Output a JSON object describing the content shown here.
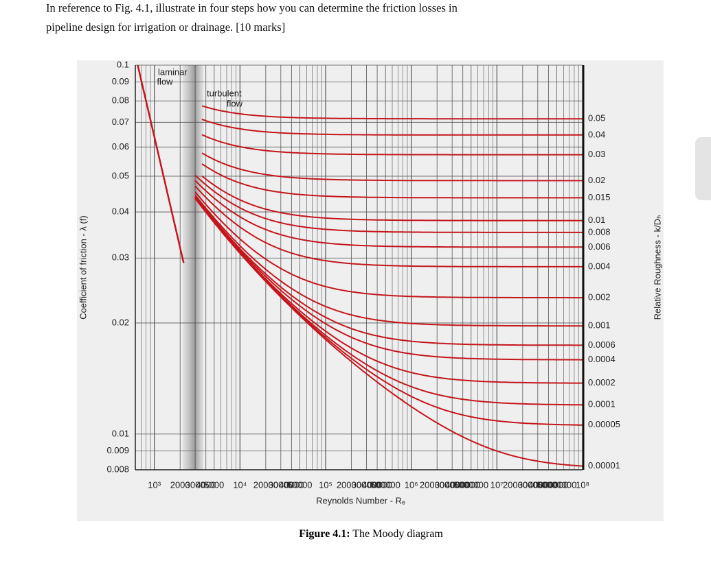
{
  "question": {
    "lines": [
      "In reference to Fig. 4.1, illustrate in four steps how you can determine the friction losses in",
      "pipeline design for irrigation or drainage.  [10 marks]"
    ]
  },
  "caption": {
    "label": "Figure 4.1:",
    "text": "The Moody diagram"
  },
  "chart_data": {
    "type": "line",
    "x_label": "Reynolds Number - Rₑ",
    "y_label": "Coefficient of friction - λ (f)",
    "y2_label": "Relative Roughness - k/Dₕ",
    "laminar_label": [
      "laminar",
      "flow"
    ],
    "turbulent_label": [
      "turbulent",
      "flow"
    ],
    "x_log": true,
    "y_log": true,
    "grid": true,
    "minor_grid": true,
    "xlim": [
      600,
      100000000
    ],
    "ylim": [
      0.008,
      0.1
    ],
    "xticks": [
      {
        "value": 1000,
        "label": "10³"
      },
      2000,
      3000,
      4000,
      5000,
      {
        "value": 10000,
        "label": "10⁴"
      },
      20000,
      30000,
      40000,
      50000,
      {
        "value": 100000,
        "label": "10⁵"
      },
      200000,
      300000,
      400000,
      500000,
      {
        "value": 1000000,
        "label": "10⁶"
      },
      2000000,
      3000000,
      4000000,
      5000000,
      {
        "value": 10000000,
        "label": "10⁷"
      },
      20000000,
      30000000,
      40000000,
      50000000,
      {
        "value": 100000000,
        "label": "10⁸"
      }
    ],
    "yticks": [
      0.1,
      0.09,
      0.08,
      0.07,
      0.06,
      0.05,
      0.04,
      0.03,
      0.02,
      0.01,
      0.009,
      0.008
    ],
    "color": "#c4161c",
    "series": [
      {
        "name": "0.05",
        "value": 0.05
      },
      {
        "name": "0.04",
        "value": 0.04
      },
      {
        "name": "0.03",
        "value": 0.03
      },
      {
        "name": "0.02",
        "value": 0.02
      },
      {
        "name": "0.015",
        "value": 0.015
      },
      {
        "name": "0.01",
        "value": 0.01
      },
      {
        "name": "0.008",
        "value": 0.008
      },
      {
        "name": "0.006",
        "value": 0.006
      },
      {
        "name": "0.004",
        "value": 0.004
      },
      {
        "name": "0.002",
        "value": 0.002
      },
      {
        "name": "0.001",
        "value": 0.001
      },
      {
        "name": "0.0006",
        "value": 0.0006
      },
      {
        "name": "0.0004",
        "value": 0.0004
      },
      {
        "name": "0.0002",
        "value": 0.0002
      },
      {
        "name": "0.0001",
        "value": 0.0001
      },
      {
        "name": "0.00005",
        "value": 5e-05
      },
      {
        "name": "0.00001",
        "value": 1e-05
      }
    ]
  }
}
